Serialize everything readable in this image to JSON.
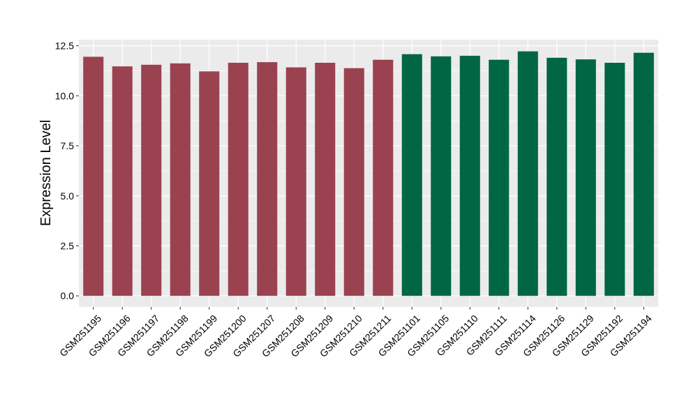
{
  "chart_data": {
    "type": "bar",
    "title": "",
    "xlabel": "",
    "ylabel": "Expression Level",
    "ylim": [
      -0.55,
      12.8
    ],
    "yticks": [
      0.0,
      2.5,
      5.0,
      7.5,
      10.0,
      12.5
    ],
    "ytick_labels": [
      "0.0",
      "2.5",
      "5.0",
      "7.5",
      "10.0",
      "12.5"
    ],
    "grid": true,
    "legend": "none",
    "colors": {
      "group_a": "#9A4250",
      "group_b": "#006644",
      "panel": "#EBEBEB",
      "grid": "#FFFFFF"
    },
    "categories": [
      "GSM251195",
      "GSM251196",
      "GSM251197",
      "GSM251198",
      "GSM251199",
      "GSM251200",
      "GSM251207",
      "GSM251208",
      "GSM251209",
      "GSM251210",
      "GSM251211",
      "GSM251101",
      "GSM251105",
      "GSM251110",
      "GSM251111",
      "GSM251114",
      "GSM251126",
      "GSM251129",
      "GSM251192",
      "GSM251194"
    ],
    "values": [
      11.95,
      11.47,
      11.55,
      11.62,
      11.22,
      11.65,
      11.68,
      11.42,
      11.65,
      11.38,
      11.8,
      12.08,
      11.97,
      12.0,
      11.8,
      12.22,
      11.9,
      11.82,
      11.65,
      12.15
    ],
    "groups": [
      "a",
      "a",
      "a",
      "a",
      "a",
      "a",
      "a",
      "a",
      "a",
      "a",
      "a",
      "b",
      "b",
      "b",
      "b",
      "b",
      "b",
      "b",
      "b",
      "b"
    ]
  }
}
